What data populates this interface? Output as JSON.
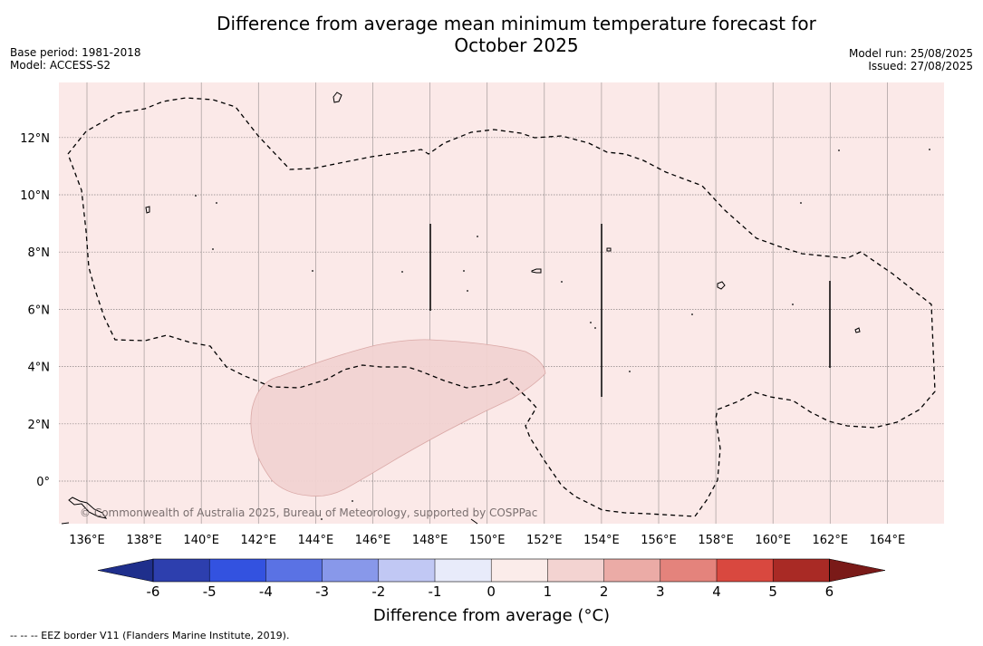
{
  "title": "Difference from average mean minimum temperature forecast for October 2025",
  "meta_left": {
    "base_period": "Base period: 1981-2018",
    "model": "Model: ACCESS-S2"
  },
  "meta_right": {
    "model_run": "Model run: 25/08/2025",
    "issued": "Issued: 27/08/2025"
  },
  "map": {
    "lon_range": [
      135,
      166
    ],
    "lat_range": [
      -1.5,
      14
    ],
    "lon_ticks": [
      "136°E",
      "138°E",
      "140°E",
      "142°E",
      "144°E",
      "146°E",
      "148°E",
      "150°E",
      "152°E",
      "154°E",
      "156°E",
      "158°E",
      "160°E",
      "162°E",
      "164°E"
    ],
    "lat_ticks": [
      "12°N",
      "10°N",
      "8°N",
      "6°N",
      "4°N",
      "2°N",
      "0°"
    ],
    "background_color": "#fbe9e8",
    "anomaly_region_color": "#f2d3d2",
    "copyright": "© Commonwealth of Australia 2025, Bureau of Meteorology, supported by COSPPac"
  },
  "colorbar": {
    "ticks": [
      "-6",
      "-5",
      "-4",
      "-3",
      "-2",
      "-1",
      "0",
      "1",
      "2",
      "3",
      "4",
      "5",
      "6"
    ],
    "colors": [
      "#1f2f8c",
      "#2d3fae",
      "#3352e0",
      "#5a72e4",
      "#8898ea",
      "#c1c8f4",
      "#e8ebfa",
      "#fbecea",
      "#f3d3d1",
      "#ebaba6",
      "#e4837c",
      "#d9483f",
      "#a92a25",
      "#7a1a18"
    ],
    "label": "Difference from average (°C)"
  },
  "footnote": "--  --  -- EEZ border V11 (Flanders Marine Institute, 2019)."
}
